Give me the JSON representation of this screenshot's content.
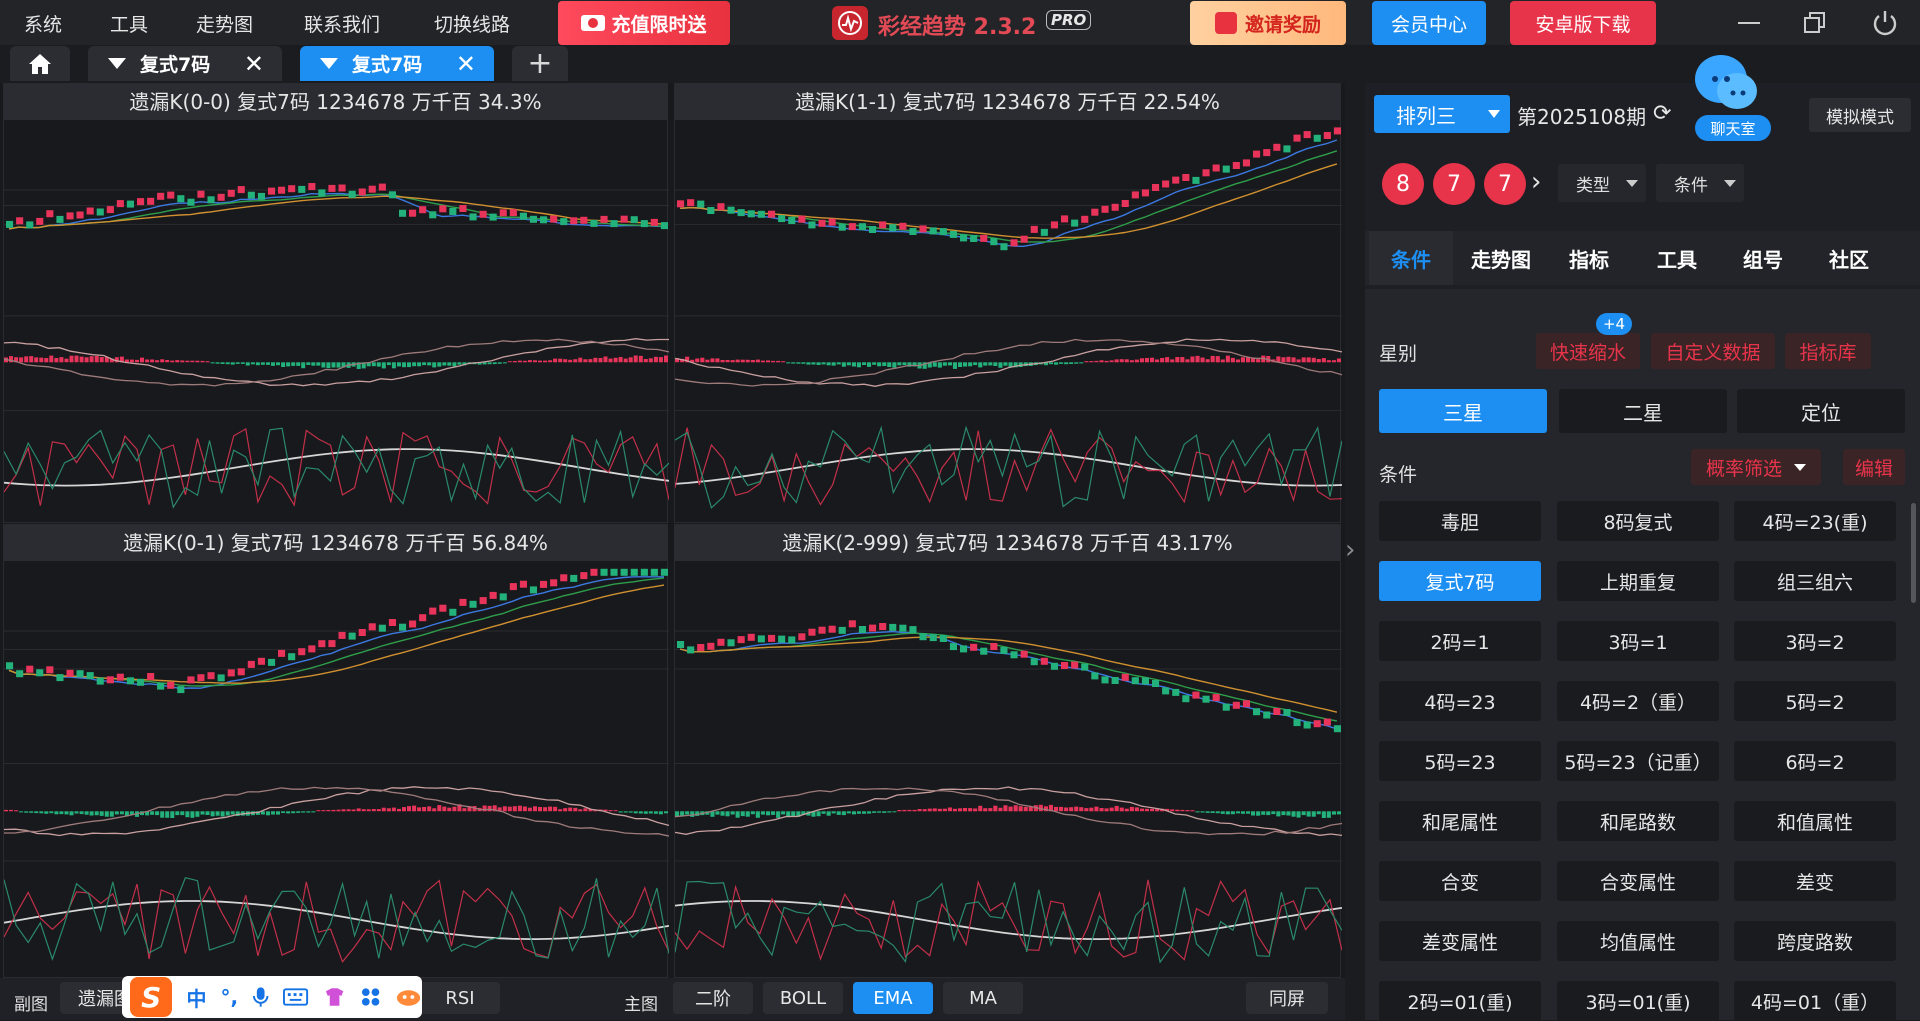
{
  "menu": [
    "系统",
    "工具",
    "走势图",
    "联系我们",
    "切换线路"
  ],
  "promo": {
    "recharge": "充值限时送",
    "invite": "邀请奖励"
  },
  "app": {
    "title": "彩经趋势 2.3.2",
    "badge": "PRO"
  },
  "header_buttons": {
    "member": "会员中心",
    "android": "安卓版下载"
  },
  "tabs": [
    {
      "label": "复式7码"
    },
    {
      "label": "复式7码"
    }
  ],
  "panels": [
    {
      "title": "遗漏K(0-0)  复式7码  1234678  万千百  34.3%"
    },
    {
      "title": "遗漏K(1-1)  复式7码  1234678  万千百  22.54%"
    },
    {
      "title": "遗漏K(0-1)  复式7码  1234678  万千百  56.84%"
    },
    {
      "title": "遗漏K(2-999)  复式7码  1234678  万千百  43.17%"
    }
  ],
  "bottom": {
    "sub_label": "副图",
    "sub_value": "遗漏图",
    "rsi": "RSI",
    "main_label": "主图",
    "buttons": [
      {
        "label": "二阶"
      },
      {
        "label": "BOLL"
      },
      {
        "label": "EMA"
      },
      {
        "label": "MA"
      }
    ],
    "same_screen": "同屏"
  },
  "ime": {
    "logo": "S",
    "lang": "中",
    "punct": "°,"
  },
  "sidebar": {
    "lottery": "排列三",
    "period": "第2025108期",
    "chat": "聊天室",
    "sim_mode": "模拟模式",
    "balls": [
      "8",
      "7",
      "7"
    ],
    "type_select": "类型",
    "cond_select": "条件",
    "nav": [
      "条件",
      "走势图",
      "指标",
      "工具",
      "组号",
      "社区"
    ],
    "star_label": "星别",
    "quick_shrink": "快速缩水",
    "quick_badge": "+4",
    "custom_data": "自定义数据",
    "indicator_lib": "指标库",
    "stars": [
      "三星",
      "二星",
      "定位"
    ],
    "cond_label": "条件",
    "prob_filter": "概率筛选",
    "edit": "编辑",
    "conditions": [
      "毒胆",
      "8码复式",
      "4码=23(重)",
      "复式7码",
      "上期重复",
      "组三组六",
      "2码=1",
      "3码=1",
      "3码=2",
      "4码=23",
      "4码=2（重）",
      "5码=2",
      "5码=23",
      "5码=23（记重）",
      "6码=2",
      "和尾属性",
      "和尾路数",
      "和值属性",
      "合变",
      "合变属性",
      "差变",
      "差变属性",
      "均值属性",
      "跨度路数",
      "2码=01(重)",
      "3码=01(重)",
      "4码=01（重）"
    ]
  }
}
